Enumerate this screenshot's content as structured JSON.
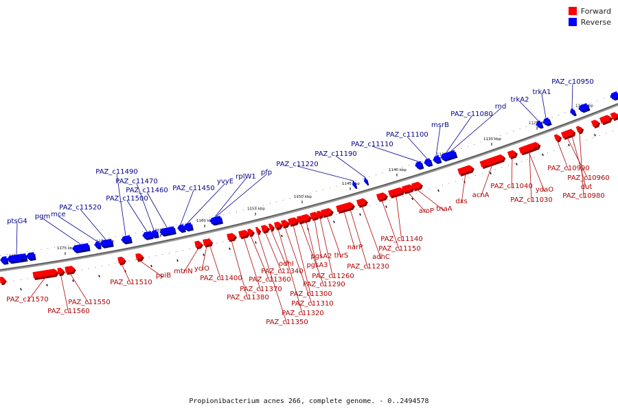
{
  "legend": {
    "forward": {
      "label": "Forward",
      "color": "#ff0000"
    },
    "reverse": {
      "label": "Reverse",
      "color": "#0000ff"
    }
  },
  "caption": "Propionibacterium acnes 266, complete genome. - 0..2494578",
  "track": {
    "scale_unit": "kbp",
    "ticks": [
      {
        "label": "1180 kbp"
      },
      {
        "label": "1175 kbp"
      },
      {
        "label": "1170 kbp"
      },
      {
        "label": "1165 kbp"
      },
      {
        "label": "1160 kbp"
      },
      {
        "label": "1155 kbp"
      },
      {
        "label": "1150 kbp"
      },
      {
        "label": "1145 kbp"
      },
      {
        "label": "1140 kbp"
      },
      {
        "label": "1135 kbp"
      },
      {
        "label": "1130 kbp"
      },
      {
        "label": "1125 kbp"
      },
      {
        "label": "1120 kbp"
      }
    ]
  },
  "reverse_genes": [
    "ptsG4",
    "pgm",
    "mce",
    "PAZ_c11520",
    "PAZ_c11490",
    "PAZ_c11500",
    "PAZ_c11470",
    "PAZ_c11460",
    "PAZ_c11450",
    "yvyE",
    "rplW1",
    "pfp",
    "PAZ_c11220",
    "PAZ_c11190",
    "PAZ_c11110",
    "PAZ_c11100",
    "msrB",
    "PAZ_c11080",
    "rnd",
    "trkA2",
    "trkA1",
    "PAZ_c10950"
  ],
  "forward_genes": [
    "PAZ_c11570",
    "PAZ_c11560",
    "PAZ_c11550",
    "PAZ_c11510",
    "ppiB",
    "mtnN",
    "yciO",
    "PAZ_c11400",
    "PAZ_c11380",
    "PAZ_c11370",
    "PAZ_c11360",
    "PAZ_c11350",
    "PAZ_c11340",
    "odhI",
    "PAZ_c11320",
    "PAZ_c11310",
    "PAZ_c11300",
    "PAZ_c11290",
    "pgsA3",
    "pgsA2",
    "PAZ_c11260",
    "thrS",
    "narP",
    "PAZ_c11230",
    "adhC",
    "PAZ_c11150",
    "PAZ_c11140",
    "aroP",
    "tnaA",
    "dxs",
    "acnA",
    "PAZ_c11040",
    "PAZ_c11030",
    "ydaO",
    "PAZ_c10990",
    "PAZ_c10960",
    "dut",
    "PAZ_c10980"
  ]
}
